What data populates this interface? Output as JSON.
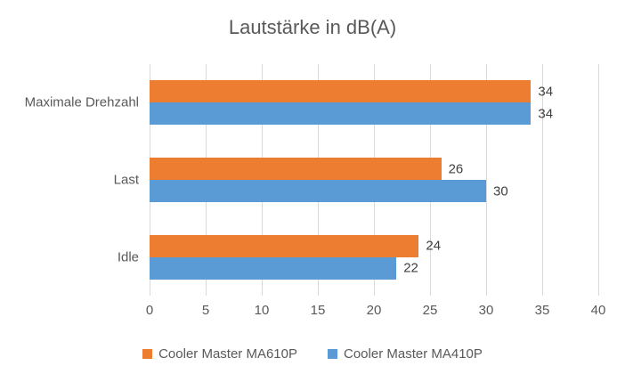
{
  "chart_data": {
    "type": "bar",
    "orientation": "horizontal",
    "title": "Lautstärke in dB(A)",
    "categories": [
      "Maximale Drehzahl",
      "Last",
      "Idle"
    ],
    "series": [
      {
        "name": "Cooler Master MA610P",
        "color": "#ED7D31",
        "values": [
          34,
          26,
          24
        ]
      },
      {
        "name": "Cooler Master MA410P",
        "color": "#5B9BD5",
        "values": [
          34,
          30,
          22
        ]
      }
    ],
    "xlabel": "",
    "ylabel": "",
    "xlim": [
      0,
      40
    ],
    "x_ticks": [
      0,
      5,
      10,
      15,
      20,
      25,
      30,
      35,
      40
    ],
    "grid": true,
    "gridline_color": "#D9D9D9",
    "data_labels": true,
    "legend_position": "bottom"
  }
}
